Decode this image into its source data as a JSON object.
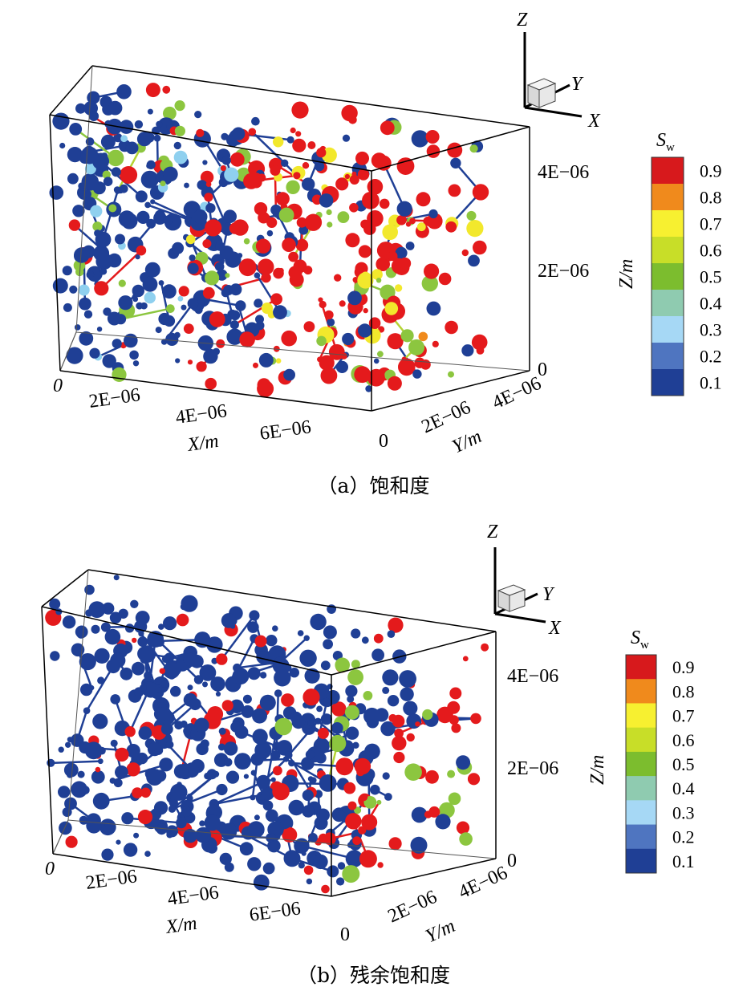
{
  "panels": [
    {
      "id": "a",
      "caption": "（a）饱和度",
      "axes": {
        "x_label": "X/m",
        "y_label": "Y/m",
        "z_label": "Z/m",
        "x_ticks": [
          "0",
          "2E−06",
          "4E−06",
          "6E−06"
        ],
        "y_ticks": [
          "0",
          "2E−06",
          "4E−06"
        ],
        "z_ticks": [
          "0",
          "2E−06",
          "4E−06"
        ]
      },
      "orientation_triad": {
        "x": "X",
        "y": "Y",
        "z": "Z"
      },
      "colorbar": {
        "title_main": "S",
        "title_sub": "w",
        "ticks": [
          "0.9",
          "0.8",
          "0.7",
          "0.6",
          "0.5",
          "0.4",
          "0.3",
          "0.2",
          "0.1"
        ]
      },
      "network": {
        "seed": 7,
        "red_region_fraction": 0.55,
        "mix": "saturation"
      }
    },
    {
      "id": "b",
      "caption": "（b）残余饱和度",
      "axes": {
        "x_label": "X/m",
        "y_label": "Y/m",
        "z_label": "Z/m",
        "x_ticks": [
          "0",
          "2E−06",
          "4E−06",
          "6E−06"
        ],
        "y_ticks": [
          "0",
          "2E−06",
          "4E−06"
        ],
        "z_ticks": [
          "0",
          "2E−06",
          "4E−06"
        ]
      },
      "orientation_triad": {
        "x": "X",
        "y": "Y",
        "z": "Z"
      },
      "colorbar": {
        "title_main": "S",
        "title_sub": "w",
        "ticks": [
          "0.9",
          "0.8",
          "0.7",
          "0.6",
          "0.5",
          "0.4",
          "0.3",
          "0.2",
          "0.1"
        ]
      },
      "network": {
        "seed": 11,
        "red_region_fraction": 0.25,
        "mix": "residual"
      }
    }
  ],
  "colorbar_colors": [
    "#d7191c",
    "#f08a1c",
    "#f7f030",
    "#c8de28",
    "#7cbd2e",
    "#8fcbb0",
    "#a6d8f5",
    "#4f75c0",
    "#1f3f95"
  ]
}
